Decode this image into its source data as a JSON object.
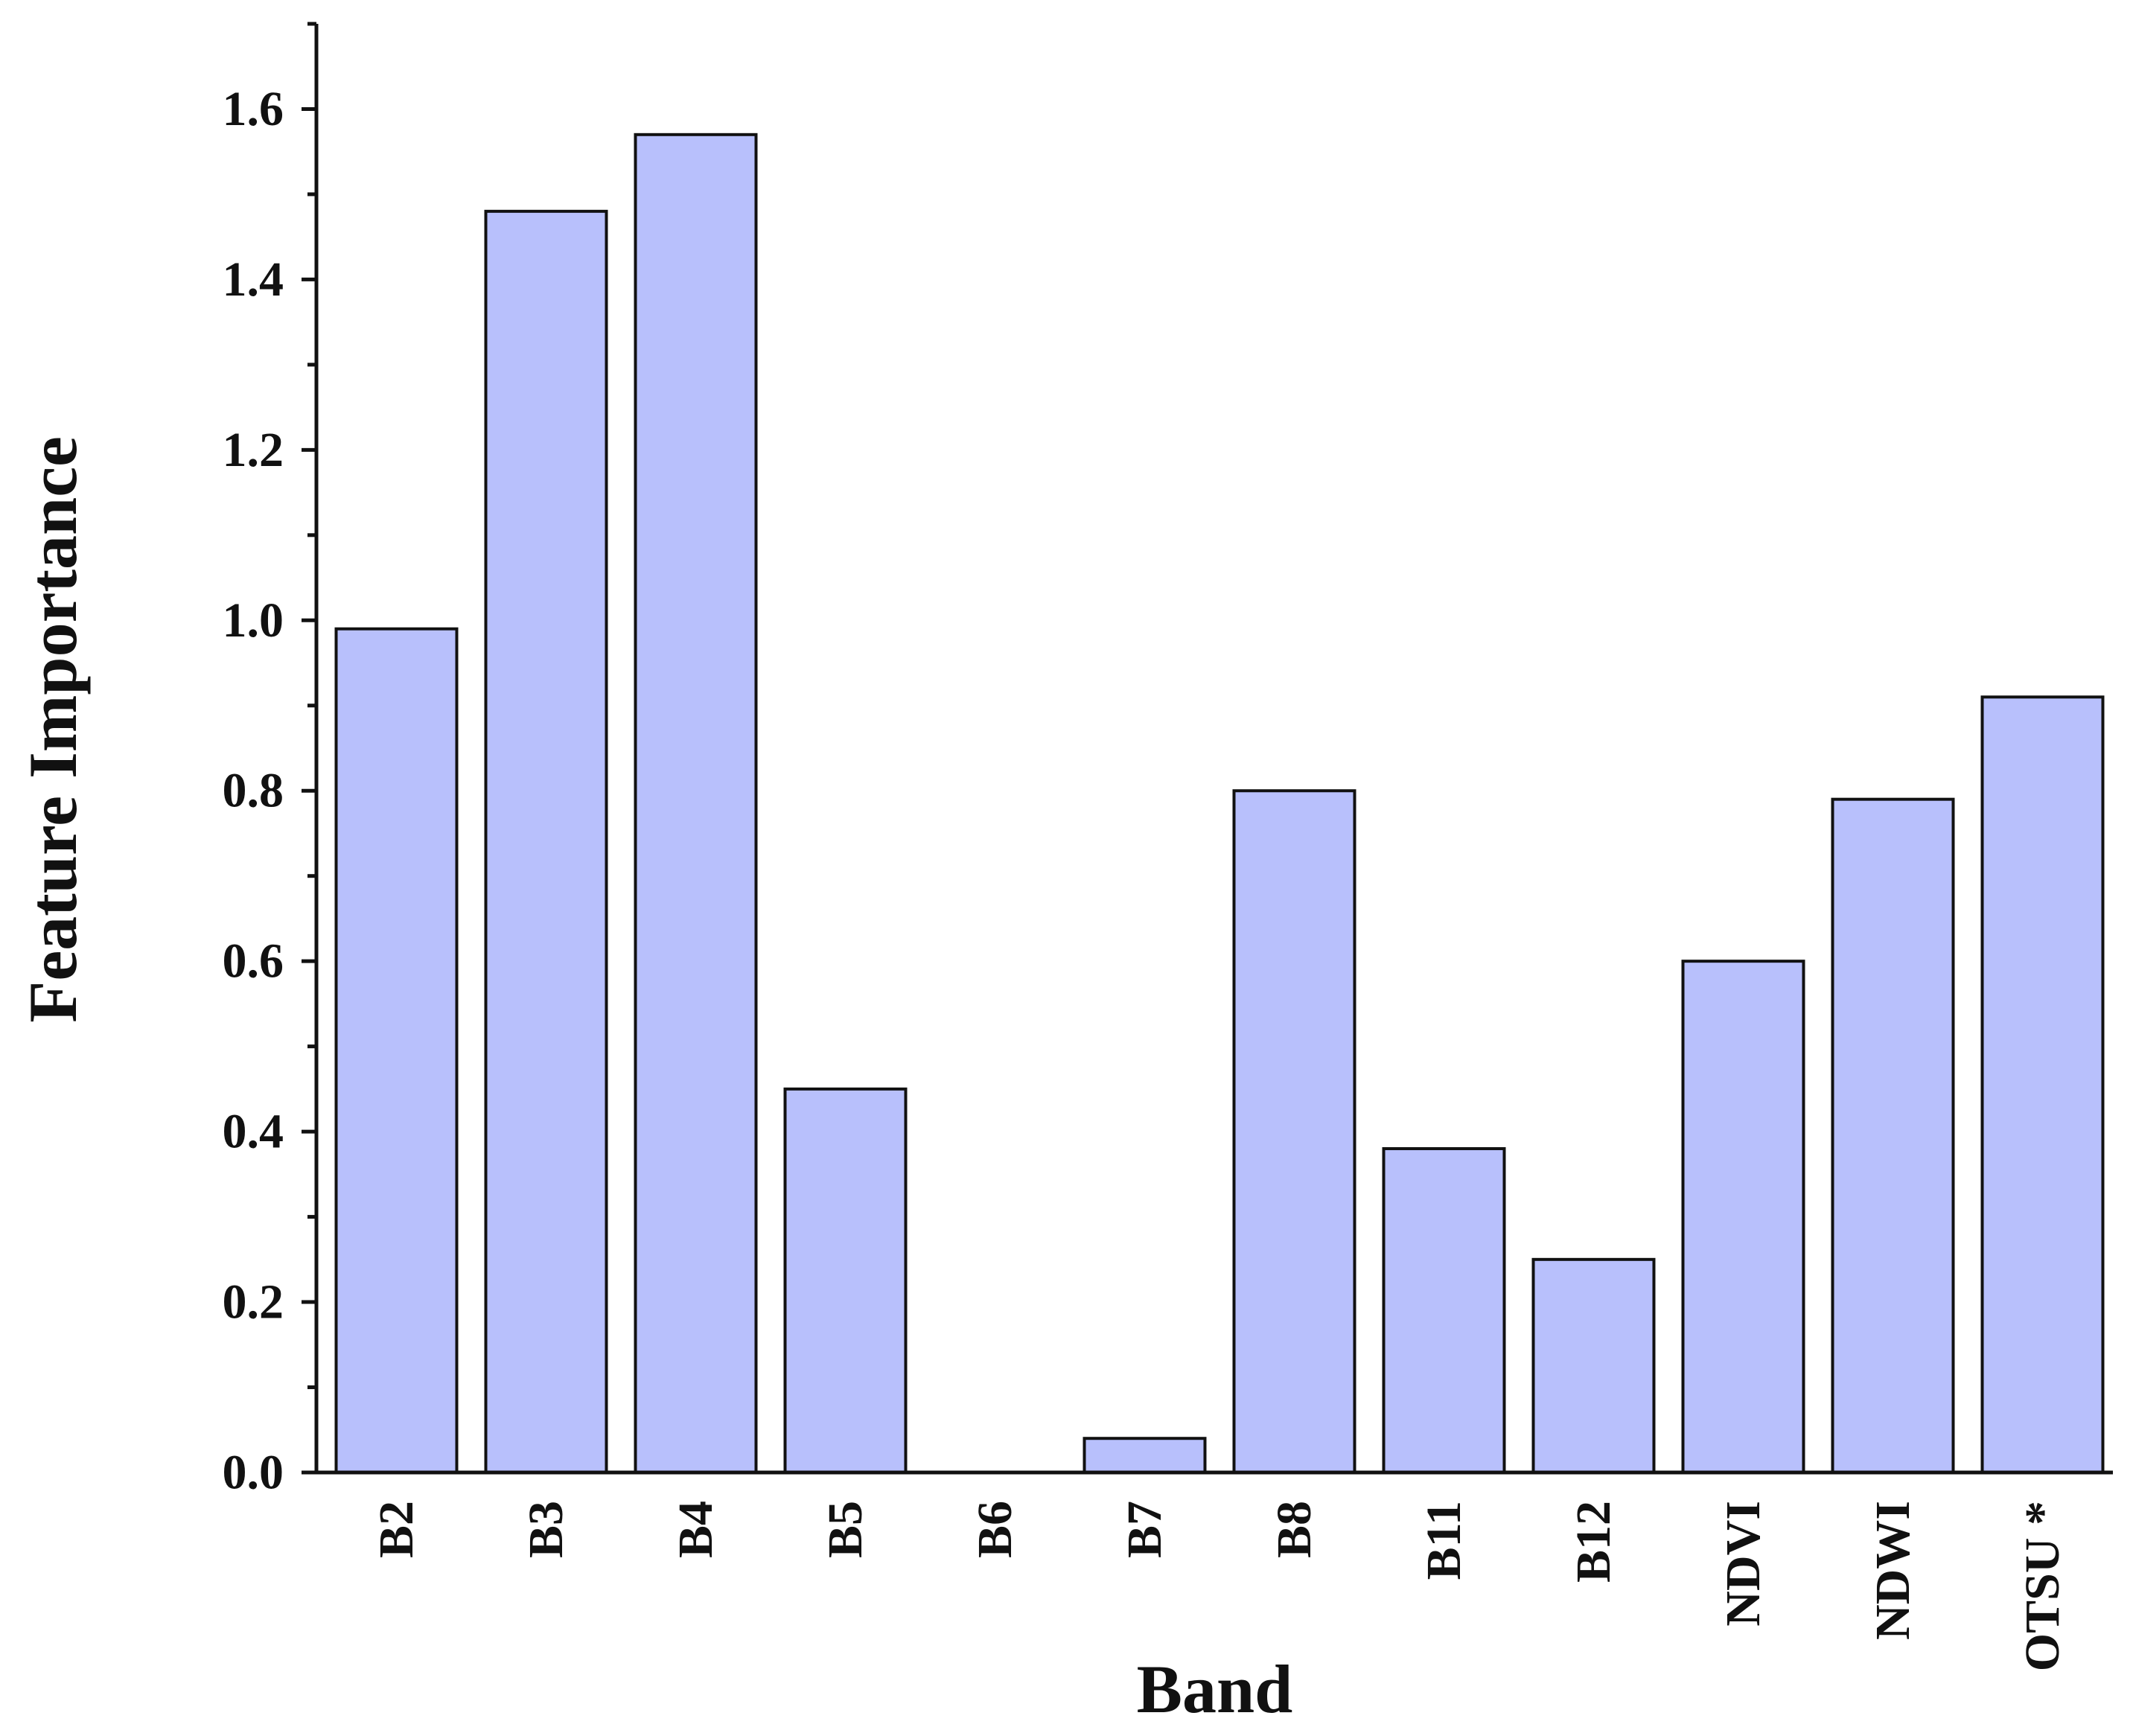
{
  "chart_data": {
    "type": "bar",
    "title": "",
    "xlabel": "Band",
    "ylabel": "Feature Importance",
    "categories": [
      "B2",
      "B3",
      "B4",
      "B5",
      "B6",
      "B7",
      "B8",
      "B11",
      "B12",
      "NDVI",
      "NDWI",
      "OTSU *"
    ],
    "values": [
      0.99,
      1.48,
      1.57,
      0.45,
      0.0,
      0.04,
      0.8,
      0.38,
      0.25,
      0.6,
      0.79,
      0.91
    ],
    "ylim": [
      0,
      1.7
    ],
    "yticks": [
      "0.0",
      "0.2",
      "0.4",
      "0.6",
      "0.8",
      "1.0",
      "1.2",
      "1.4",
      "1.6"
    ],
    "grid": false,
    "legend": "none",
    "bar_color": "#b8c0fc",
    "edge_color": "#111111"
  }
}
